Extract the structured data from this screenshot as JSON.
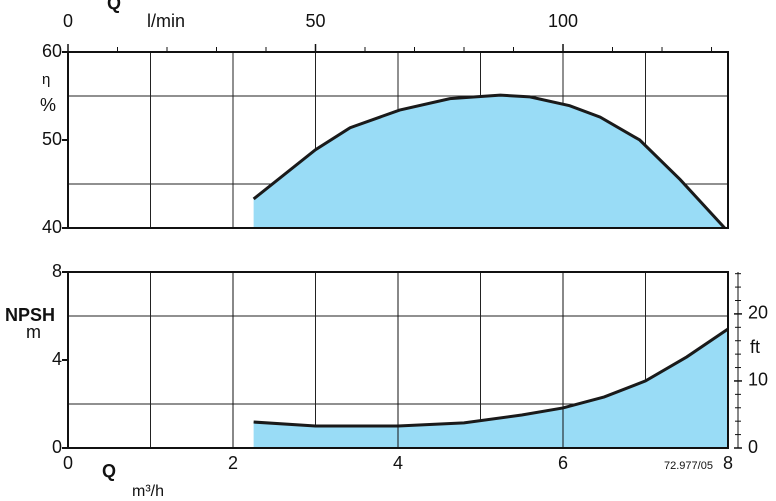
{
  "chart_data": [
    {
      "type": "area",
      "x2_title": "Q",
      "x2_label": "l/min",
      "y_label": "η",
      "y_unit": "%",
      "x2lim": [
        0,
        133.33
      ],
      "x2ticks": [
        0,
        50,
        100
      ],
      "x2minor": [
        10,
        20,
        30,
        40,
        60,
        70,
        80,
        90,
        110,
        120,
        130
      ],
      "xlim": [
        0,
        8
      ],
      "xgrid": [
        1,
        2,
        3,
        4,
        5,
        6,
        7
      ],
      "ylim": [
        40,
        60
      ],
      "yticks": [
        40,
        50,
        60
      ],
      "ygrid": [
        45,
        55
      ],
      "color": "#99dcf6",
      "line_color": "#1a1a1a",
      "x": [
        2.25,
        3.0,
        3.42,
        4.02,
        4.63,
        5.24,
        5.6,
        6.08,
        6.45,
        6.93,
        7.42,
        7.96
      ],
      "values": [
        43.3,
        48.9,
        51.4,
        53.4,
        54.7,
        55.1,
        54.9,
        53.9,
        52.6,
        50.0,
        45.5,
        40.0
      ]
    },
    {
      "type": "area",
      "x_title": "Q",
      "x_label": "m³/h",
      "y_label": "NPSH",
      "y_unit": "m",
      "y2_label": "ft",
      "code": "72.977/05",
      "xlim": [
        0,
        8
      ],
      "xticks": [
        0,
        2,
        4,
        6,
        8
      ],
      "xgrid": [
        1,
        3,
        5,
        7
      ],
      "ylim": [
        0,
        8
      ],
      "yticks": [
        0,
        4,
        8
      ],
      "ygrid": [
        2,
        6
      ],
      "y2lim": [
        0,
        26.25
      ],
      "y2ticks": [
        0,
        10,
        20
      ],
      "y2minor": [
        2,
        4,
        6,
        8,
        12,
        14,
        16,
        18,
        22,
        24,
        26
      ],
      "color": "#99dcf6",
      "line_color": "#1a1a1a",
      "x": [
        2.25,
        3.0,
        4.0,
        4.8,
        5.5,
        6.0,
        6.5,
        7.0,
        7.5,
        8.0
      ],
      "values": [
        1.18,
        1.0,
        1.0,
        1.14,
        1.5,
        1.82,
        2.32,
        3.05,
        4.14,
        5.41
      ]
    }
  ]
}
